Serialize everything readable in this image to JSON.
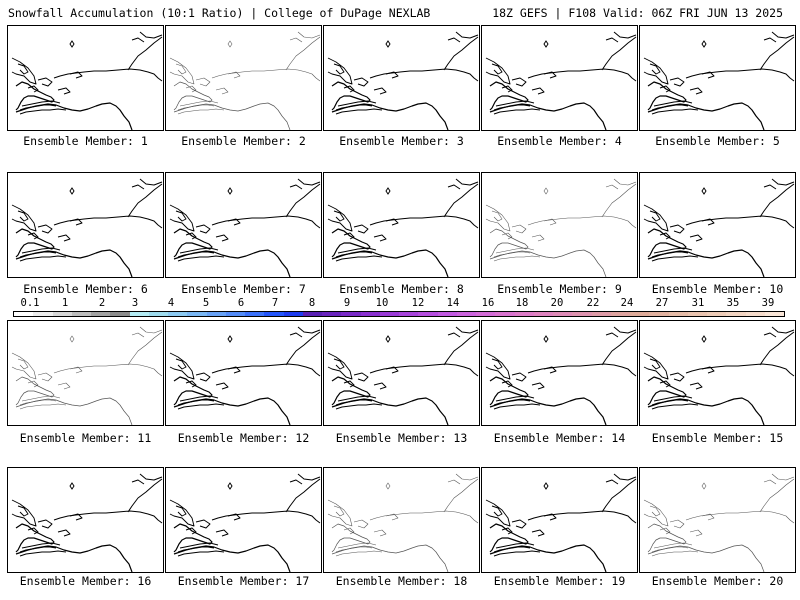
{
  "header": {
    "left_title": "Snowfall Accumulation (10:1 Ratio) | College of DuPage NEXLAB",
    "right_title": "18Z GEFS | F108 Valid: 06Z FRI JUN 13 2025"
  },
  "panels": [
    {
      "label": "Ensemble Member: 1",
      "line_style": "normal"
    },
    {
      "label": "Ensemble Member: 2",
      "line_style": "light"
    },
    {
      "label": "Ensemble Member: 3",
      "line_style": "normal"
    },
    {
      "label": "Ensemble Member: 4",
      "line_style": "normal"
    },
    {
      "label": "Ensemble Member: 5",
      "line_style": "normal"
    },
    {
      "label": "Ensemble Member: 6",
      "line_style": "normal"
    },
    {
      "label": "Ensemble Member: 7",
      "line_style": "normal"
    },
    {
      "label": "Ensemble Member: 8",
      "line_style": "normal"
    },
    {
      "label": "Ensemble Member: 9",
      "line_style": "light"
    },
    {
      "label": "Ensemble Member: 10",
      "line_style": "normal"
    },
    {
      "label": "Ensemble Member: 11",
      "line_style": "light"
    },
    {
      "label": "Ensemble Member: 12",
      "line_style": "normal"
    },
    {
      "label": "Ensemble Member: 13",
      "line_style": "normal"
    },
    {
      "label": "Ensemble Member: 14",
      "line_style": "normal"
    },
    {
      "label": "Ensemble Member: 15",
      "line_style": "normal"
    },
    {
      "label": "Ensemble Member: 16",
      "line_style": "normal"
    },
    {
      "label": "Ensemble Member: 17",
      "line_style": "normal"
    },
    {
      "label": "Ensemble Member: 18",
      "line_style": "light"
    },
    {
      "label": "Ensemble Member: 19",
      "line_style": "normal"
    },
    {
      "label": "Ensemble Member: 20",
      "line_style": "light"
    }
  ],
  "colorbar": {
    "ticks": [
      "0.1",
      "1",
      "2",
      "3",
      "4",
      "5",
      "6",
      "7",
      "8",
      "9",
      "10",
      "12",
      "14",
      "16",
      "18",
      "20",
      "22",
      "24",
      "27",
      "31",
      "35",
      "39"
    ],
    "colors": [
      "#ffffff",
      "#ececec",
      "#d6d6d6",
      "#bdbdbd",
      "#a3a3a3",
      "#8c8c8c",
      "#b4ecf4",
      "#9fdcee",
      "#8ccaf2",
      "#7ab7f4",
      "#68a2f6",
      "#548cf8",
      "#3c72fa",
      "#2456fb",
      "#1e3cf0",
      "#5a20b4",
      "#6a24be",
      "#7a2ac8",
      "#8a30d0",
      "#9a3ad6",
      "#a844dc",
      "#b64ee0",
      "#c25ae2",
      "#cc64de",
      "#d46cd8",
      "#da74d0",
      "#de7cc8",
      "#e084c0",
      "#e08cb8",
      "#e094b0",
      "#e09ca8",
      "#e0a4a0",
      "#e0ac9a",
      "#e2b2a0",
      "#e6bca8",
      "#eac4b0",
      "#eeccb8",
      "#f2d4c2",
      "#f6dccc",
      "#fae6d8"
    ]
  }
}
